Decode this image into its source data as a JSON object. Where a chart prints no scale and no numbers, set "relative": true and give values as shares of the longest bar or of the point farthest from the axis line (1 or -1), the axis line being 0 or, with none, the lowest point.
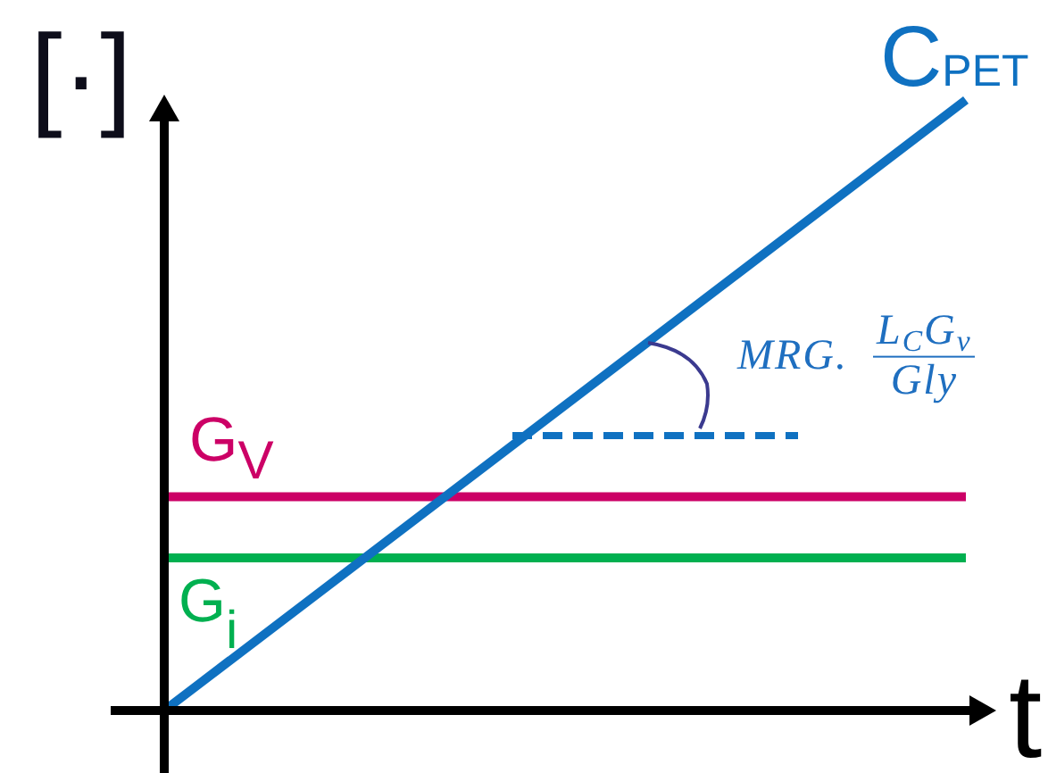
{
  "chart_data": {
    "type": "line",
    "ylabel": "[·]",
    "xlabel": "t",
    "categories": [
      null,
      null
    ],
    "series": [
      {
        "name": "C$_{PET}$",
        "color": "#0f71c1",
        "values": [
          0,
          1
        ]
      },
      {
        "name": "G$_{V}$",
        "color": "#cc0066",
        "values": [
          0.35,
          0.35
        ]
      },
      {
        "name": "G$_{i}$",
        "color": "#00b050",
        "values": [
          0.25,
          0.25
        ]
      }
    ],
    "relative": true,
    "legend": false,
    "marker": "none",
    "annotations": [
      "MRG. L$_{C}$G$_{v}$ Gly"
    ]
  }
}
